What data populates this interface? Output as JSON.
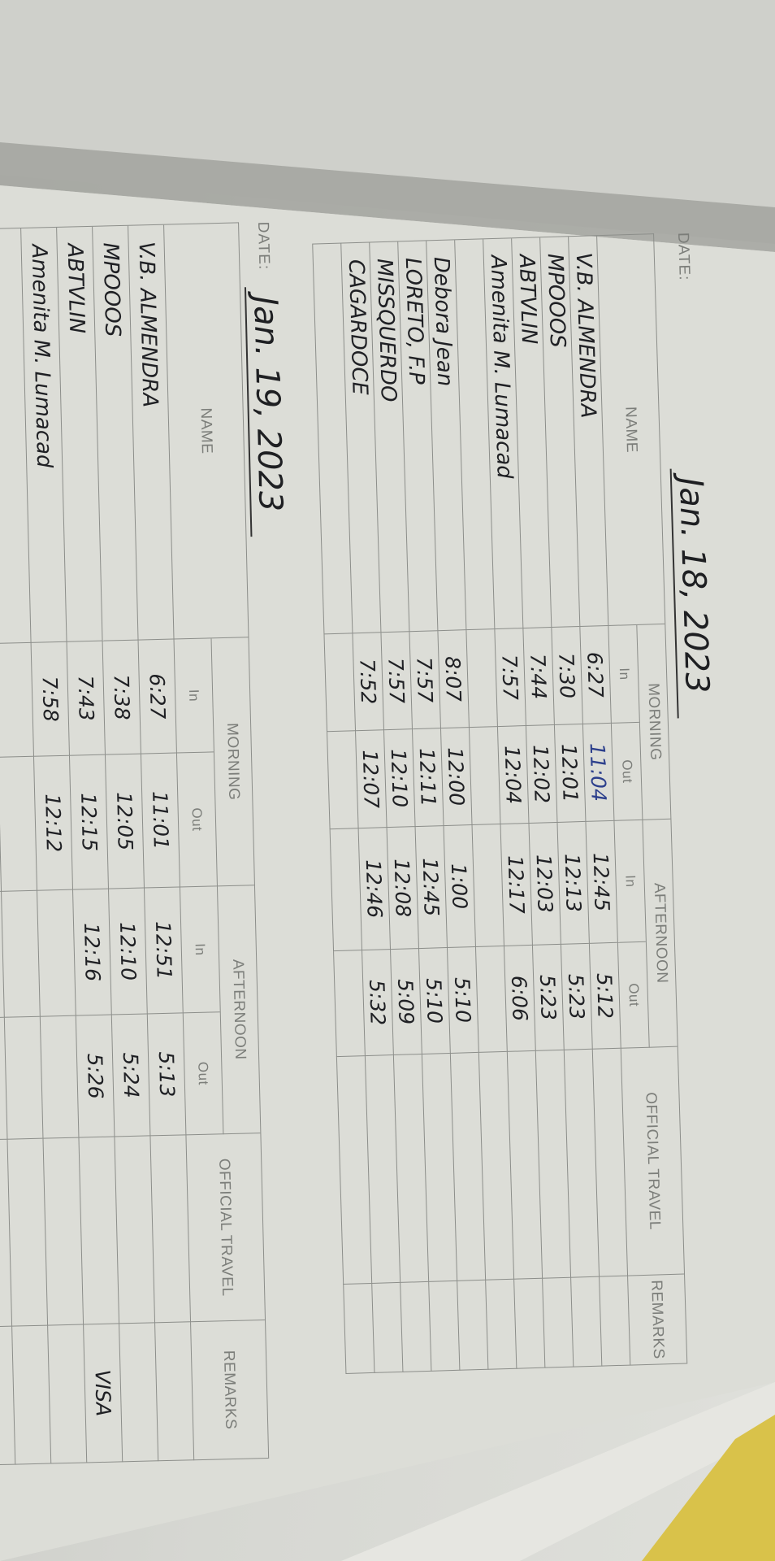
{
  "headers": {
    "date_label": "DATE:",
    "name": "NAME",
    "morning": "MORNING",
    "afternoon": "AFTERNOON",
    "in": "In",
    "out": "Out",
    "official_travel": "OFFICIAL TRAVEL",
    "remarks": "REMARKS"
  },
  "ink_colors": {
    "black": "#1f2024",
    "blue": "#2c3f8c"
  },
  "logs": [
    {
      "date": "Jan. 18, 2023",
      "rows": [
        {
          "name": "V.B. ALMENDRA",
          "morning_in": "6:27",
          "morning_out": "11:04",
          "afternoon_in": "12:45",
          "afternoon_out": "5:12",
          "official_travel": "",
          "remarks": "",
          "morning_out_ink": "blue"
        },
        {
          "name": "MPOOOS",
          "morning_in": "7:30",
          "morning_out": "12:01",
          "afternoon_in": "12:13",
          "afternoon_out": "5:23",
          "official_travel": "",
          "remarks": ""
        },
        {
          "name": "ABTVLIN",
          "morning_in": "7:44",
          "morning_out": "12:02",
          "afternoon_in": "12:03",
          "afternoon_out": "5:23",
          "official_travel": "",
          "remarks": ""
        },
        {
          "name": "Amenita M. Lumacad",
          "morning_in": "7:57",
          "morning_out": "12:04",
          "afternoon_in": "12:17",
          "afternoon_out": "6:06",
          "official_travel": "",
          "remarks": ""
        },
        {
          "name": "",
          "morning_in": "",
          "morning_out": "",
          "afternoon_in": "",
          "afternoon_out": "",
          "official_travel": "",
          "remarks": ""
        },
        {
          "name": "Debora Jean",
          "morning_in": "8:07",
          "morning_out": "12:00",
          "afternoon_in": "1:00",
          "afternoon_out": "5:10",
          "official_travel": "",
          "remarks": ""
        },
        {
          "name": "LORETO, F.P",
          "morning_in": "7:57",
          "morning_out": "12:11",
          "afternoon_in": "12:45",
          "afternoon_out": "5:10",
          "official_travel": "",
          "remarks": ""
        },
        {
          "name": "MISSQUERDO",
          "morning_in": "7:57",
          "morning_out": "12:10",
          "afternoon_in": "12:08",
          "afternoon_out": "5:09",
          "official_travel": "",
          "remarks": ""
        },
        {
          "name": "CAGARDOCE",
          "morning_in": "7:52",
          "morning_out": "12:07",
          "afternoon_in": "12:46",
          "afternoon_out": "5:32",
          "official_travel": "",
          "remarks": ""
        }
      ]
    },
    {
      "date": "Jan. 19, 2023",
      "rows": [
        {
          "name": "V.B. ALMENDRA",
          "morning_in": "6:27",
          "morning_out": "11:01",
          "afternoon_in": "12:51",
          "afternoon_out": "5:13",
          "official_travel": "",
          "remarks": ""
        },
        {
          "name": "MPOOOS",
          "morning_in": "7:38",
          "morning_out": "12:05",
          "afternoon_in": "12:10",
          "afternoon_out": "5:24",
          "official_travel": "",
          "remarks": ""
        },
        {
          "name": "ABTVLIN",
          "morning_in": "7:43",
          "morning_out": "12:15",
          "afternoon_in": "12:16",
          "afternoon_out": "5:26",
          "official_travel": "",
          "remarks": "VISA"
        },
        {
          "name": "Amenita M. Lumacad",
          "morning_in": "7:58",
          "morning_out": "12:12",
          "afternoon_in": "",
          "afternoon_out": "",
          "official_travel": "",
          "remarks": ""
        }
      ]
    }
  ]
}
